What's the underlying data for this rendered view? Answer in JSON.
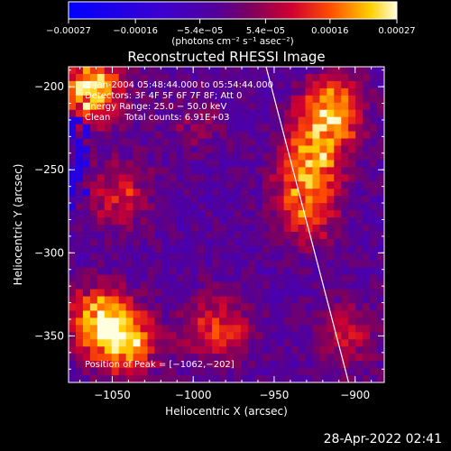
{
  "chart_data": {
    "type": "heatmap",
    "title": "Reconstructed RHESSI Image",
    "xlabel": "Heliocentric X (arcsec)",
    "ylabel": "Heliocentric Y (arcsec)",
    "xlim": [
      -1077,
      -882
    ],
    "ylim": [
      -378,
      -188
    ],
    "x_ticks": [
      {
        "value": -1050,
        "label": "−1050"
      },
      {
        "value": -1000,
        "label": "−1000"
      },
      {
        "value": -950,
        "label": "−950"
      },
      {
        "value": -900,
        "label": "−900"
      }
    ],
    "y_ticks": [
      {
        "value": -200,
        "label": "−200"
      },
      {
        "value": -250,
        "label": "−250"
      },
      {
        "value": -300,
        "label": "−300"
      },
      {
        "value": -350,
        "label": "−350"
      }
    ],
    "colorbar": {
      "range": [
        -0.00027,
        0.00027
      ],
      "tick_labels": [
        "−0.00027",
        "−0.00016",
        "−5.4e−05",
        "5.4e−05",
        "0.00016",
        "0.00027"
      ],
      "tick_values": [
        -0.00027,
        -0.00016,
        -5.4e-05,
        5.4e-05,
        0.00016,
        0.00027
      ],
      "unit_label": "(photons cm⁻² s⁻¹ asec⁻²)"
    },
    "annotations": [
      "5-Jan-2004 05:48:44.000 to 05:54:44.000",
      "Detectors: 3F 4F 5F 6F 7F 8F; Att 0",
      "Energy Range: 25.0 − 50.0 keV",
      "Clean     Total counts: 6.91E+03"
    ],
    "peak_annotation": "Position of Peak = [−1062,−202]",
    "limb_line": {
      "x": [
        -955,
        -904
      ],
      "y": [
        -188,
        -378
      ]
    },
    "bright_regions": [
      {
        "x": -915,
        "y": -215,
        "intensity": 0.00026
      },
      {
        "x": -928,
        "y": -245,
        "intensity": 0.00022
      },
      {
        "x": -930,
        "y": -275,
        "intensity": 0.00018
      },
      {
        "x": -1062,
        "y": -202,
        "intensity": 0.00027
      },
      {
        "x": -1058,
        "y": -340,
        "intensity": 0.00026
      },
      {
        "x": -1040,
        "y": -355,
        "intensity": 0.0002
      },
      {
        "x": -985,
        "y": -345,
        "intensity": 0.00017
      },
      {
        "x": -1045,
        "y": -265,
        "intensity": 0.00014
      },
      {
        "x": -905,
        "y": -350,
        "intensity": 0.00012
      },
      {
        "x": -1000,
        "y": -220,
        "intensity": 6e-05
      }
    ]
  },
  "footer": {
    "timestamp": "28-Apr-2022 02:41"
  },
  "colors": {
    "background": "#000000",
    "text": "#ffffff",
    "negative": "#0000ff",
    "neutral": "#4a0090",
    "positive": "#ffff80"
  }
}
